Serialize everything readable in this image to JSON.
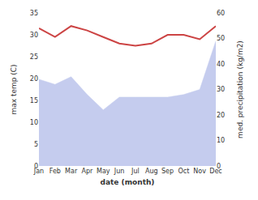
{
  "chart_data": {
    "type": "line",
    "xlabel": "date (month)",
    "ylabel": "max temp (C)",
    "y2label": "med. precipitation (kg/m2)",
    "categories": [
      "Jan",
      "Feb",
      "Mar",
      "Apr",
      "May",
      "Jun",
      "Jul",
      "Aug",
      "Sep",
      "Oct",
      "Nov",
      "Dec"
    ],
    "series": [
      {
        "type": "area",
        "axis": "y2",
        "color": "#c5ccee",
        "values": [
          34,
          32,
          35,
          28,
          22,
          27,
          27,
          27,
          27,
          28,
          30,
          49
        ]
      },
      {
        "type": "line",
        "color": "#cc4444",
        "values": [
          31.5,
          29.5,
          32.0,
          31.0,
          29.5,
          28.0,
          27.5,
          28.0,
          30.0,
          30.0,
          29.0,
          32.0
        ]
      }
    ],
    "ylim": [
      0,
      35
    ],
    "yticks": [
      0,
      5,
      10,
      15,
      20,
      25,
      30,
      35
    ],
    "y2lim": [
      0,
      60
    ],
    "y2ticks": [
      0,
      10,
      20,
      30,
      40,
      50,
      60
    ],
    "grid": false
  }
}
